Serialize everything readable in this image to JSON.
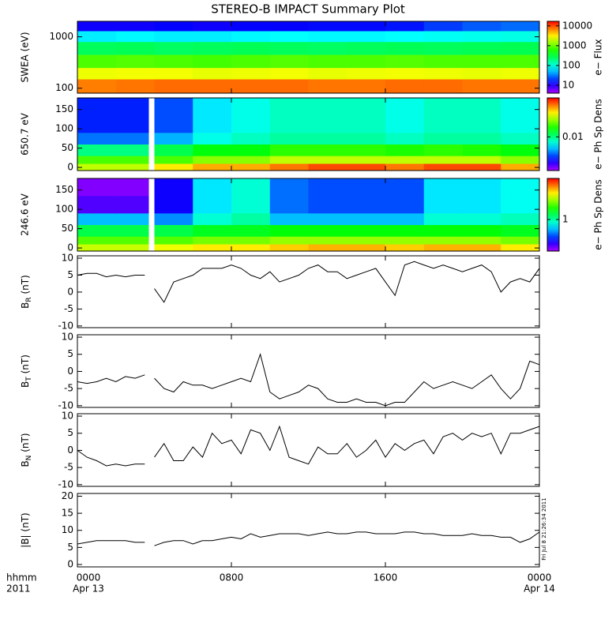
{
  "title": "STEREO-B IMPACT Summary Plot",
  "chart_data": [
    {
      "type": "heatmap",
      "ylabel": "SWEA (eV)",
      "ylog": true,
      "ylim": [
        80,
        2000
      ],
      "yticks": [
        100,
        1000
      ],
      "xlim": [
        0,
        24
      ],
      "colormap": "rainbow",
      "x_bins": [
        0,
        2,
        4,
        6,
        8,
        10,
        12,
        14,
        16,
        18,
        20,
        22,
        24
      ],
      "y_bins": [
        80,
        150,
        250,
        450,
        800,
        1300,
        2000
      ],
      "z": [
        [
          7000,
          7500,
          8000,
          8000,
          8000,
          8000,
          7500,
          7500,
          8000,
          8000,
          7500,
          7500
        ],
        [
          2500,
          2600,
          2600,
          2400,
          2500,
          2600,
          2400,
          2500,
          2600,
          2500,
          2400,
          2500
        ],
        [
          800,
          850,
          800,
          750,
          800,
          850,
          800,
          800,
          850,
          800,
          800,
          800
        ],
        [
          250,
          260,
          240,
          250,
          260,
          250,
          240,
          250,
          260,
          250,
          260,
          270
        ],
        [
          70,
          75,
          70,
          70,
          75,
          80,
          75,
          75,
          80,
          85,
          90,
          95
        ],
        [
          12,
          12,
          13,
          12,
          13,
          13,
          14,
          14,
          15,
          20,
          25,
          28
        ]
      ],
      "colorbar": {
        "label": "e− Flux",
        "log": true,
        "lim": [
          4,
          17000
        ],
        "ticks": [
          10,
          100,
          1000,
          10000
        ]
      }
    },
    {
      "type": "heatmap",
      "ylabel": "650.7 eV",
      "ylog": false,
      "ylim": [
        -8,
        180
      ],
      "yticks": [
        0,
        50,
        100,
        150
      ],
      "xlim": [
        0,
        24
      ],
      "colormap": "rainbow",
      "x_bins": [
        0,
        2,
        3.7,
        4,
        6,
        8,
        10,
        12,
        14,
        16,
        18,
        20,
        22,
        24
      ],
      "y_bins": [
        -8,
        10,
        30,
        60,
        90,
        135,
        180
      ],
      "z": [
        [
          0.03,
          0.03,
          null,
          0.04,
          0.05,
          0.05,
          0.06,
          0.07,
          0.07,
          0.06,
          0.07,
          0.07,
          0.05
        ],
        [
          0.02,
          0.02,
          null,
          0.02,
          0.025,
          0.025,
          0.03,
          0.03,
          0.03,
          0.03,
          0.03,
          0.03,
          0.025
        ],
        [
          0.01,
          0.01,
          null,
          0.012,
          0.015,
          0.015,
          0.018,
          0.018,
          0.018,
          0.017,
          0.018,
          0.017,
          0.015
        ],
        [
          0.004,
          0.004,
          null,
          0.005,
          0.007,
          0.008,
          0.009,
          0.009,
          0.009,
          0.008,
          0.009,
          0.009,
          0.008
        ],
        [
          0.003,
          0.003,
          null,
          0.0035,
          0.006,
          0.007,
          0.008,
          0.008,
          0.008,
          0.007,
          0.008,
          0.008,
          0.007
        ],
        [
          0.003,
          0.003,
          null,
          0.0035,
          0.006,
          0.007,
          0.008,
          0.008,
          0.008,
          0.007,
          0.008,
          0.008,
          0.007
        ]
      ],
      "colorbar": {
        "label": "e− Ph Sp Dens",
        "log": true,
        "lim": [
          0.0015,
          0.09
        ],
        "ticks": [
          0.01
        ]
      }
    },
    {
      "type": "heatmap",
      "ylabel": "246.6 eV",
      "ylog": false,
      "ylim": [
        -8,
        180
      ],
      "yticks": [
        0,
        50,
        100,
        150
      ],
      "xlim": [
        0,
        24
      ],
      "colormap": "rainbow",
      "x_bins": [
        0,
        2,
        3.7,
        4,
        6,
        8,
        10,
        12,
        14,
        16,
        18,
        20,
        22,
        24
      ],
      "y_bins": [
        -8,
        10,
        30,
        60,
        90,
        135,
        180
      ],
      "z": [
        [
          5,
          5,
          null,
          6,
          7,
          7,
          8,
          9,
          9,
          8,
          9,
          9,
          7
        ],
        [
          3,
          3,
          null,
          3,
          3.5,
          3.5,
          4,
          4,
          4,
          4,
          4,
          4,
          3.5
        ],
        [
          1.5,
          1.5,
          null,
          1.5,
          1.8,
          1.8,
          2,
          2,
          2,
          2,
          2,
          2,
          1.8
        ],
        [
          0.5,
          0.5,
          null,
          0.4,
          0.8,
          1,
          0.5,
          0.5,
          0.5,
          0.5,
          0.8,
          0.8,
          0.9
        ],
        [
          0.15,
          0.15,
          null,
          0.2,
          0.6,
          0.8,
          0.35,
          0.3,
          0.3,
          0.3,
          0.6,
          0.6,
          0.7
        ],
        [
          0.12,
          0.12,
          null,
          0.2,
          0.6,
          0.8,
          0.35,
          0.3,
          0.3,
          0.3,
          0.6,
          0.6,
          0.7
        ]
      ],
      "colorbar": {
        "label": "e− Ph Sp Dens",
        "log": true,
        "lim": [
          0.1,
          20
        ],
        "ticks": [
          1
        ]
      }
    },
    {
      "type": "line",
      "ylabel": {
        "base": "B",
        "sub": "R",
        "rest": " (nT)"
      },
      "ylim": [
        -10.5,
        10.7
      ],
      "yticks": [
        -10,
        -5,
        0,
        5,
        10
      ],
      "xlim": [
        0,
        24
      ],
      "color": "#000000",
      "x": [
        0,
        0.5,
        1,
        1.5,
        2,
        2.5,
        3,
        3.5,
        3.75,
        4,
        4.5,
        5,
        5.5,
        6,
        6.5,
        7,
        7.5,
        8,
        8.5,
        9,
        9.5,
        10,
        10.5,
        11,
        11.5,
        12,
        12.5,
        13,
        13.5,
        14,
        14.5,
        15,
        15.5,
        16,
        16.5,
        17,
        17.5,
        18,
        18.5,
        19,
        19.5,
        20,
        20.5,
        21,
        21.5,
        22,
        22.5,
        23,
        23.5,
        24
      ],
      "values": [
        5,
        5.5,
        5.5,
        4.5,
        5,
        4.5,
        5,
        5,
        null,
        1,
        -3,
        3,
        4,
        5,
        7,
        7,
        7,
        8,
        7,
        5,
        4,
        6,
        3,
        4,
        5,
        7,
        8,
        6,
        6,
        4,
        5,
        6,
        7,
        3,
        -1,
        8,
        9,
        8,
        7,
        8,
        7,
        6,
        7,
        8,
        6,
        0,
        3,
        4,
        3,
        7
      ]
    },
    {
      "type": "line",
      "ylabel": {
        "base": "B",
        "sub": "T",
        "rest": " (nT)"
      },
      "ylim": [
        -10.5,
        10.7
      ],
      "yticks": [
        -10,
        -5,
        0,
        5,
        10
      ],
      "xlim": [
        0,
        24
      ],
      "color": "#000000",
      "x": [
        0,
        0.5,
        1,
        1.5,
        2,
        2.5,
        3,
        3.5,
        3.75,
        4,
        4.5,
        5,
        5.5,
        6,
        6.5,
        7,
        7.5,
        8,
        8.5,
        9,
        9.5,
        10,
        10.5,
        11,
        11.5,
        12,
        12.5,
        13,
        13.5,
        14,
        14.5,
        15,
        15.5,
        16,
        16.5,
        17,
        17.5,
        18,
        18.5,
        19,
        19.5,
        20,
        20.5,
        21,
        21.5,
        22,
        22.5,
        23,
        23.5,
        24
      ],
      "values": [
        -3,
        -3.5,
        -3,
        -2,
        -3,
        -1.5,
        -2,
        -1,
        null,
        -2,
        -5,
        -6,
        -3,
        -4,
        -4,
        -5,
        -4,
        -3,
        -2,
        -3,
        5,
        -6,
        -8,
        -7,
        -6,
        -4,
        -5,
        -8,
        -9,
        -9,
        -8,
        -9,
        -9,
        -10,
        -9,
        -9,
        -6,
        -3,
        -5,
        -4,
        -3,
        -4,
        -5,
        -3,
        -1,
        -5,
        -8,
        -5,
        3,
        2
      ]
    },
    {
      "type": "line",
      "ylabel": {
        "base": "B",
        "sub": "N",
        "rest": " (nT)"
      },
      "ylim": [
        -10.5,
        10.7
      ],
      "yticks": [
        -10,
        -5,
        0,
        5,
        10
      ],
      "xlim": [
        0,
        24
      ],
      "color": "#000000",
      "x": [
        0,
        0.5,
        1,
        1.5,
        2,
        2.5,
        3,
        3.5,
        3.75,
        4,
        4.5,
        5,
        5.5,
        6,
        6.5,
        7,
        7.5,
        8,
        8.5,
        9,
        9.5,
        10,
        10.5,
        11,
        11.5,
        12,
        12.5,
        13,
        13.5,
        14,
        14.5,
        15,
        15.5,
        16,
        16.5,
        17,
        17.5,
        18,
        18.5,
        19,
        19.5,
        20,
        20.5,
        21,
        21.5,
        22,
        22.5,
        23,
        23.5,
        24
      ],
      "values": [
        0,
        -2,
        -3,
        -4.5,
        -4,
        -4.5,
        -4,
        -4,
        null,
        -2,
        2,
        -3,
        -3,
        1,
        -2,
        5,
        2,
        3,
        -1,
        6,
        5,
        0,
        7,
        -2,
        -3,
        -4,
        1,
        -1,
        -1,
        2,
        -2,
        0,
        3,
        -2,
        2,
        0,
        2,
        3,
        -1,
        4,
        5,
        3,
        5,
        4,
        5,
        -1,
        5,
        5,
        6,
        7
      ]
    },
    {
      "type": "line",
      "ylabel": {
        "base": "|B|",
        "sub": "",
        "rest": " (nT)"
      },
      "ylim": [
        -0.7,
        20.8
      ],
      "yticks": [
        0,
        5,
        10,
        15,
        20
      ],
      "xlim": [
        0,
        24
      ],
      "color": "#000000",
      "x": [
        0,
        0.5,
        1,
        1.5,
        2,
        2.5,
        3,
        3.5,
        3.75,
        4,
        4.5,
        5,
        5.5,
        6,
        6.5,
        7,
        7.5,
        8,
        8.5,
        9,
        9.5,
        10,
        10.5,
        11,
        11.5,
        12,
        12.5,
        13,
        13.5,
        14,
        14.5,
        15,
        15.5,
        16,
        16.5,
        17,
        17.5,
        18,
        18.5,
        19,
        19.5,
        20,
        20.5,
        21,
        21.5,
        22,
        22.5,
        23,
        23.5,
        24
      ],
      "values": [
        6,
        6.5,
        7,
        7,
        7,
        7,
        6.5,
        6.5,
        null,
        5.5,
        6.5,
        7,
        7,
        6,
        7,
        7,
        7.5,
        8,
        7.5,
        9,
        8,
        8.5,
        9,
        9,
        9,
        8.5,
        9,
        9.5,
        9,
        9,
        9.5,
        9.5,
        9,
        9,
        9,
        9.5,
        9.5,
        9,
        9,
        8.5,
        8.5,
        8.5,
        9,
        8.5,
        8.5,
        8,
        8,
        6.5,
        7.5,
        9.5
      ],
      "xticks": [
        {
          "value": 0,
          "label": "0000"
        },
        {
          "value": 8,
          "label": "0800"
        },
        {
          "value": 16,
          "label": "1600"
        },
        {
          "value": 24,
          "label": "0000"
        }
      ],
      "xtick_dates": [
        {
          "value": 0,
          "label": "Apr 13"
        },
        {
          "value": 24,
          "label": "Apr 14"
        }
      ],
      "x_axis_labels": [
        "hhmm",
        "2011"
      ],
      "annotation": "Fri Jul  8 21:26:34 2011"
    }
  ]
}
